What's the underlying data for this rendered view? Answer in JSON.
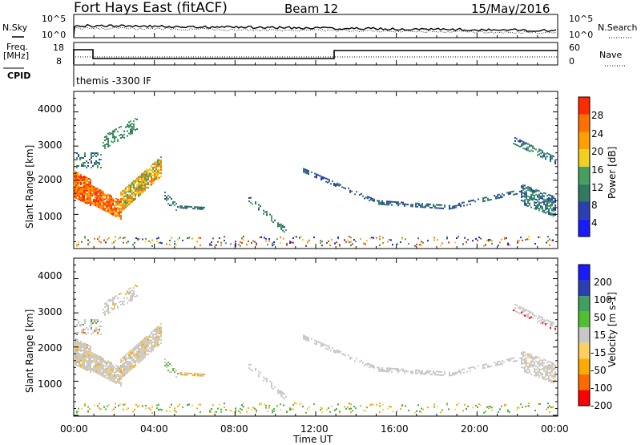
{
  "header": {
    "radar": "Fort Hays East (fitACF)",
    "beam": "Beam 12",
    "date": "15/May/2016"
  },
  "noise_panel": {
    "left_label": "N.Sky",
    "right_label": "N.Search",
    "left_ticks": [
      "10^5",
      "10^0"
    ],
    "right_ticks": [
      "10^5",
      "10^0"
    ]
  },
  "freq_panel": {
    "left_label_1": "Freq.",
    "left_label_2": "[MHz]",
    "cpid_label": "CPID",
    "right_label": "Nave",
    "left_ticks": [
      "18",
      "8"
    ],
    "right_ticks": [
      "60",
      "0"
    ],
    "cpid_text": "themis -3300 IF"
  },
  "colors": {
    "power": [
      "#1a1aff",
      "#2a3fb0",
      "#2f7a60",
      "#45a060",
      "#f2d020",
      "#ffa000",
      "#ff7000",
      "#ff2a00"
    ],
    "velocity": [
      "#ff0000",
      "#ff6a00",
      "#ffaa00",
      "#ffd060",
      "#c8c8c8",
      "#50c030",
      "#40a060",
      "#2a3fb0",
      "#1a1aff"
    ],
    "ground": "#a0a0a0"
  },
  "chart_data": [
    {
      "type": "heatmap",
      "name": "power",
      "ylabel": "Slant Range [km]",
      "yticks": [
        "1000",
        "2000",
        "3000",
        "4000"
      ],
      "ylim": [
        0,
        4600
      ],
      "colorbar_label": "Power [dB]",
      "colorbar_ticks": [
        "4",
        "8",
        "12",
        "16",
        "20",
        "24",
        "28"
      ],
      "colorbar_range": [
        0,
        32
      ]
    },
    {
      "type": "heatmap",
      "name": "velocity",
      "ylabel": "Slant Range [km]",
      "yticks": [
        "1000",
        "2000",
        "3000",
        "4000"
      ],
      "ylim": [
        0,
        4600
      ],
      "colorbar_label": "Velocity [m s-1]",
      "colorbar_ticks": [
        "-200",
        "-100",
        "-50",
        "-15",
        "15",
        "50",
        "100",
        "200"
      ]
    }
  ],
  "time_axis": {
    "label": "Time UT",
    "ticks": [
      "00:00",
      "04:00",
      "08:00",
      "12:00",
      "16:00",
      "20:00",
      "00:00"
    ]
  }
}
